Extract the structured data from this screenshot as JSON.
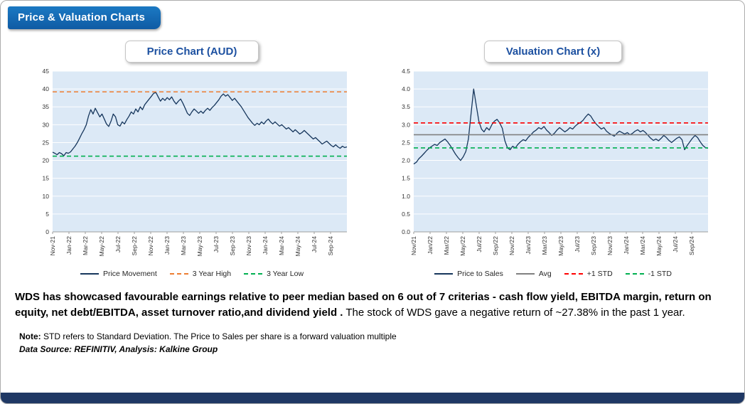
{
  "page": {
    "title": "Price & Valuation Charts",
    "commentary_bold": "WDS has showcased favourable earnings relative to peer median based on 6 out of 7 criterias - cash flow yield, EBITDA margin, return on equity, net debt/EBITDA, asset turnover ratio,and dividend yield .",
    "commentary_regular": " The stock of WDS gave a negative return of ~27.38% in the past 1 year.",
    "note_label": "Note:",
    "note_text": " STD refers to Standard Deviation. The Price to Sales per share is a forward valuation multiple",
    "data_source": "Data Source: REFINITIV, Analysis: Kalkine Group"
  },
  "colors": {
    "badge_bg": "#1263AC",
    "header_text": "#1C50A0",
    "plot_bg": "#DCE9F6",
    "bottom_bar": "#1F3864",
    "price_line": "#16365C",
    "high_line": "#ED7D31",
    "low_line": "#00B050",
    "avg_line": "#808080",
    "std_plus_line": "#FF0000",
    "std_minus_line": "#00B050"
  },
  "chart_data": [
    {
      "id": "price-chart",
      "type": "line",
      "title": "Price Chart (AUD)",
      "ylim": [
        0,
        45
      ],
      "ytick_step": 5,
      "y_decimals": 0,
      "x_span": 36,
      "x_label_every": 2,
      "plot_bg": "#DCE9F6",
      "x_labels": [
        "Nov-21",
        "Jan-22",
        "Mar-22",
        "May-22",
        "Jul-22",
        "Sep-22",
        "Nov-22",
        "Jan-23",
        "Mar-23",
        "May-23",
        "Jul-23",
        "Sep-23",
        "Nov-23",
        "Jan-24",
        "Mar-24",
        "May-24",
        "Jul-24",
        "Sep-24"
      ],
      "series": [
        {
          "name": "Price Movement",
          "color": "#16365C",
          "style": "solid",
          "values": [
            22.3,
            22.0,
            21.6,
            22.2,
            21.9,
            21.3,
            22.2,
            22.0,
            22.4,
            23.2,
            24.0,
            25.0,
            26.2,
            27.5,
            28.6,
            30.0,
            32.5,
            34.2,
            33.0,
            34.6,
            33.4,
            32.2,
            33.0,
            31.6,
            30.2,
            29.5,
            31.0,
            33.0,
            32.2,
            30.0,
            29.6,
            30.8,
            30.2,
            31.4,
            32.4,
            33.6,
            33.0,
            34.4,
            33.6,
            35.0,
            34.2,
            35.6,
            36.4,
            37.2,
            38.0,
            38.8,
            39.0,
            37.8,
            36.6,
            37.4,
            36.8,
            37.6,
            37.0,
            37.8,
            36.6,
            35.8,
            36.6,
            37.2,
            36.0,
            34.6,
            33.2,
            32.6,
            33.6,
            34.4,
            33.8,
            33.2,
            33.8,
            33.2,
            34.0,
            34.6,
            34.0,
            34.8,
            35.4,
            36.2,
            37.0,
            38.0,
            38.6,
            38.0,
            38.4,
            37.6,
            36.8,
            37.4,
            36.6,
            35.8,
            35.0,
            34.0,
            33.0,
            32.0,
            31.2,
            30.4,
            29.8,
            30.4,
            30.0,
            30.8,
            30.2,
            31.0,
            31.6,
            30.8,
            30.2,
            30.8,
            30.2,
            29.6,
            30.0,
            29.4,
            28.8,
            29.2,
            28.6,
            28.0,
            28.6,
            28.0,
            27.4,
            27.8,
            28.4,
            27.8,
            27.2,
            26.6,
            26.0,
            26.4,
            25.8,
            25.2,
            24.6,
            25.0,
            25.4,
            24.8,
            24.2,
            23.8,
            24.4,
            23.8,
            23.4,
            24.0,
            23.6,
            23.8
          ]
        },
        {
          "name": "3 Year High",
          "color": "#ED7D31",
          "style": "dashed",
          "value": 39.2
        },
        {
          "name": "3 Year Low",
          "color": "#00B050",
          "style": "dashed",
          "value": 21.2
        }
      ]
    },
    {
      "id": "valuation-chart",
      "type": "line",
      "title": "Valuation Chart (x)",
      "ylim": [
        0,
        4.5
      ],
      "ytick_step": 0.5,
      "y_decimals": 1,
      "x_span": 36,
      "x_label_every": 2,
      "plot_bg": "#DCE9F6",
      "x_labels": [
        "Nov/21",
        "Jan/22",
        "Mar/22",
        "May/22",
        "Jul/22",
        "Sep/22",
        "Nov/22",
        "Jan/23",
        "Mar/23",
        "May/23",
        "Jul/23",
        "Sep/23",
        "Nov/23",
        "Jan/24",
        "Mar/24",
        "May/24",
        "Jul/24",
        "Sep/24"
      ],
      "series": [
        {
          "name": "Price to Sales",
          "color": "#16365C",
          "style": "solid",
          "values": [
            1.9,
            1.95,
            2.05,
            2.12,
            2.2,
            2.28,
            2.35,
            2.4,
            2.45,
            2.42,
            2.5,
            2.55,
            2.6,
            2.52,
            2.42,
            2.3,
            2.18,
            2.08,
            2.0,
            2.1,
            2.25,
            2.6,
            3.3,
            4.0,
            3.55,
            3.1,
            2.88,
            2.8,
            2.92,
            2.85,
            3.0,
            3.1,
            3.15,
            3.05,
            2.9,
            2.55,
            2.35,
            2.3,
            2.4,
            2.35,
            2.45,
            2.52,
            2.58,
            2.55,
            2.65,
            2.72,
            2.8,
            2.85,
            2.92,
            2.88,
            2.95,
            2.85,
            2.78,
            2.7,
            2.76,
            2.85,
            2.92,
            2.86,
            2.8,
            2.85,
            2.92,
            2.88,
            2.96,
            3.02,
            3.06,
            3.12,
            3.22,
            3.3,
            3.24,
            3.12,
            3.02,
            2.95,
            2.88,
            2.92,
            2.82,
            2.76,
            2.72,
            2.68,
            2.76,
            2.82,
            2.78,
            2.74,
            2.78,
            2.72,
            2.76,
            2.82,
            2.86,
            2.8,
            2.84,
            2.78,
            2.7,
            2.62,
            2.56,
            2.6,
            2.55,
            2.62,
            2.7,
            2.64,
            2.56,
            2.5,
            2.56,
            2.62,
            2.66,
            2.58,
            2.3,
            2.42,
            2.52,
            2.62,
            2.7,
            2.64,
            2.52,
            2.42,
            2.36,
            2.34
          ]
        },
        {
          "name": "Avg",
          "color": "#808080",
          "style": "solid",
          "value": 2.72
        },
        {
          "name": "+1 STD",
          "color": "#FF0000",
          "style": "dashed",
          "value": 3.05
        },
        {
          "name": "-1 STD",
          "color": "#00B050",
          "style": "dashed",
          "value": 2.35
        }
      ]
    }
  ]
}
